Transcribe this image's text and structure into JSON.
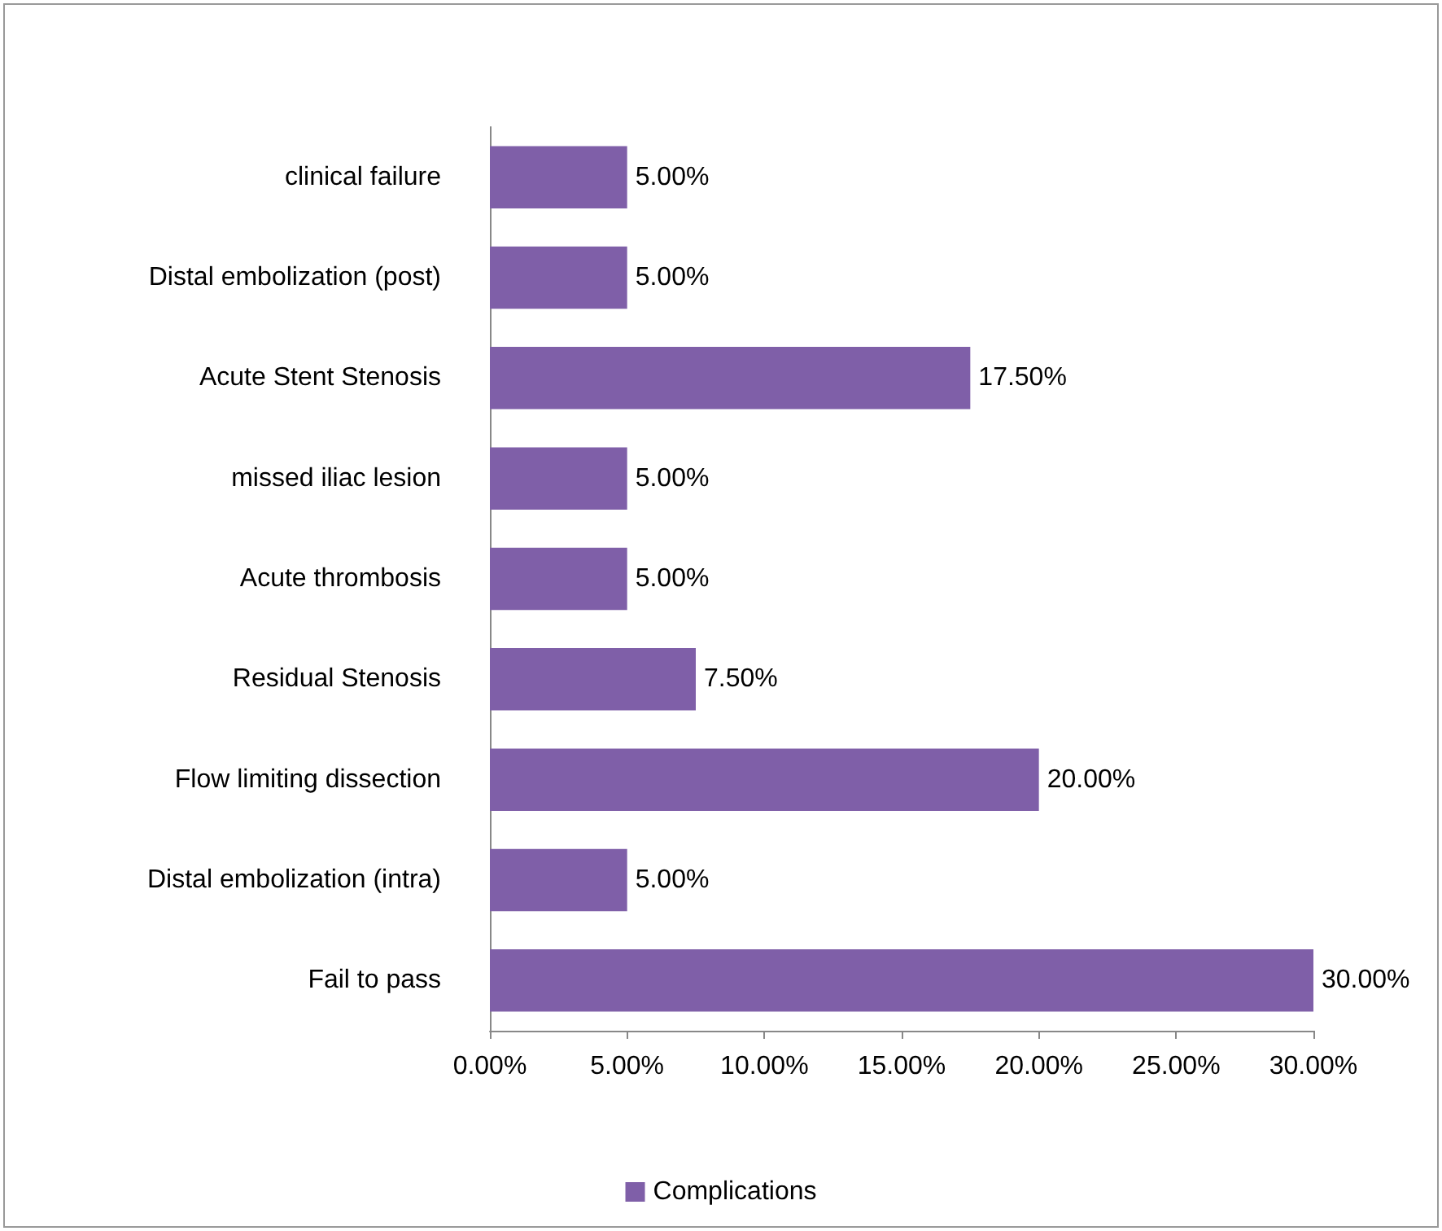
{
  "chart_data": {
    "type": "bar",
    "orientation": "horizontal",
    "categories": [
      "clinical failure",
      "Distal embolization (post)",
      "Acute Stent Stenosis",
      "missed iliac lesion",
      "Acute thrombosis",
      "Residual Stenosis",
      "Flow limiting dissection",
      "Distal embolization (intra)",
      "Fail to pass"
    ],
    "series": [
      {
        "name": "Complications",
        "color": "#7f5fa8",
        "values": [
          5,
          5,
          17.5,
          5,
          5,
          7.5,
          20,
          5,
          30
        ],
        "value_labels": [
          "5.00%",
          "5.00%",
          "17.50%",
          "5.00%",
          "5.00%",
          "7.50%",
          "20.00%",
          "5.00%",
          "30.00%"
        ]
      }
    ],
    "xlim": [
      0,
      30
    ],
    "xticks": [
      {
        "value": 0,
        "label": "0.00%"
      },
      {
        "value": 5,
        "label": "5.00%"
      },
      {
        "value": 10,
        "label": "10.00%"
      },
      {
        "value": 15,
        "label": "15.00%"
      },
      {
        "value": 20,
        "label": "20.00%"
      },
      {
        "value": 25,
        "label": "25.00%"
      },
      {
        "value": 30,
        "label": "30.00%"
      }
    ],
    "grid": false,
    "legend": "bottom"
  }
}
